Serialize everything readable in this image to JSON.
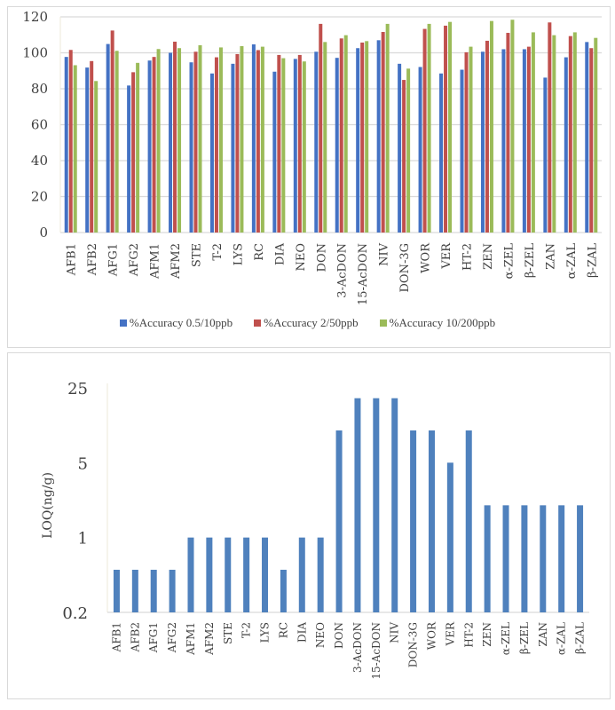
{
  "chart_data": [
    {
      "type": "bar",
      "title": "",
      "xlabel": "",
      "ylabel": "",
      "ylim": [
        0,
        120
      ],
      "yticks": [
        "0",
        "20",
        "40",
        "60",
        "80",
        "100",
        "120"
      ],
      "grid": true,
      "legend_position": "bottom",
      "categories": [
        "AFB1",
        "AFB2",
        "AFG1",
        "AFG2",
        "AFM1",
        "AFM2",
        "STE",
        "T-2",
        "LYS",
        "RC",
        "DIA",
        "NEO",
        "DON",
        "3-AcDON",
        "15-AcDON",
        "NIV",
        "DON-3G",
        "WOR",
        "VER",
        "HT-2",
        "ZEN",
        "α-ZEL",
        "β-ZEL",
        "ZAN",
        "α-ZAL",
        "β-ZAL"
      ],
      "series": [
        {
          "name": "%Accuracy 0.5/10ppb",
          "color": "#4472c4",
          "values": [
            97.7,
            91.8,
            104.9,
            81.8,
            95.7,
            100.0,
            94.7,
            88.5,
            93.9,
            104.7,
            89.5,
            96.6,
            100.6,
            97.2,
            102.6,
            107.0,
            93.9,
            92.1,
            88.5,
            90.6,
            100.6,
            102.0,
            102.0,
            86.2,
            97.5,
            106.0
          ]
        },
        {
          "name": "%Accuracy 2/50ppb",
          "color": "#c0504d",
          "values": [
            101.6,
            95.4,
            112.4,
            89.2,
            97.7,
            106.2,
            100.6,
            97.5,
            99.3,
            101.5,
            98.8,
            98.8,
            116.1,
            108.0,
            105.7,
            111.6,
            84.9,
            113.3,
            115.1,
            100.3,
            106.7,
            111.1,
            103.4,
            116.9,
            109.3,
            102.6
          ]
        },
        {
          "name": "%Accuracy 10/200ppb",
          "color": "#9bbb59",
          "values": [
            93.1,
            84.3,
            101.1,
            94.4,
            102.1,
            102.6,
            104.2,
            103.0,
            103.7,
            103.4,
            97.0,
            95.2,
            106.0,
            109.8,
            106.5,
            116.1,
            91.2,
            116.1,
            117.2,
            103.4,
            117.7,
            118.4,
            111.4,
            109.8,
            111.4,
            108.3
          ]
        }
      ]
    },
    {
      "type": "bar",
      "title": "",
      "xlabel": "",
      "ylabel": "LOQ(ng/g)",
      "yscale": "log5",
      "ylim": [
        0.2,
        25
      ],
      "yticks": [
        "0.2",
        "1",
        "5",
        "25"
      ],
      "ytick_values": [
        0.2,
        1,
        5,
        25
      ],
      "grid": false,
      "legend_position": "none",
      "categories": [
        "AFB1",
        "AFB2",
        "AFG1",
        "AFG2",
        "AFM1",
        "AFM2",
        "STE",
        "T-2",
        "LYS",
        "RC",
        "DIA",
        "NEO",
        "DON",
        "3-AcDON",
        "15-AcDON",
        "NIV",
        "DON-3G",
        "WOR",
        "VER",
        "HT-2",
        "ZEN",
        "α-ZEL",
        "β-ZEL",
        "ZAN",
        "α-ZAL",
        "β-ZAL"
      ],
      "series": [
        {
          "name": "LOQ",
          "color": "#4f81bd",
          "values": [
            0.5,
            0.5,
            0.5,
            0.5,
            1,
            1,
            1,
            1,
            1,
            0.5,
            1,
            1,
            10,
            20,
            20,
            20,
            10,
            10,
            5,
            10,
            2,
            2,
            2,
            2,
            2,
            2
          ]
        }
      ]
    }
  ]
}
